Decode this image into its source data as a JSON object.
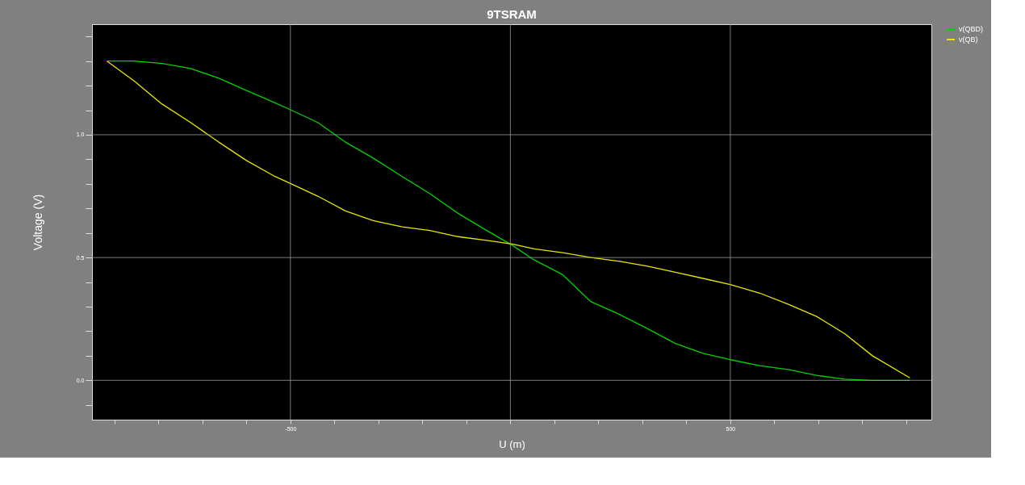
{
  "chart_data": {
    "type": "line",
    "title": "9TSRAM",
    "xlabel": "U (m)",
    "ylabel": "Voltage (V)",
    "x": [
      -917,
      -856,
      -792,
      -727,
      -663,
      -600,
      -535,
      -498,
      -438,
      -375,
      -312,
      -246,
      -183,
      -119,
      -54,
      4,
      54,
      119,
      183,
      246,
      312,
      375,
      438,
      500,
      567,
      631,
      696,
      760,
      823,
      908
    ],
    "series": [
      {
        "name": "v(QBD)",
        "color": "#00d200",
        "values": [
          1.3,
          1.3,
          1.29,
          1.27,
          1.23,
          1.18,
          1.13,
          1.1,
          1.05,
          0.97,
          0.905,
          0.83,
          0.76,
          0.68,
          0.61,
          0.55,
          0.49,
          0.43,
          0.32,
          0.27,
          0.21,
          0.15,
          0.11,
          0.084,
          0.06,
          0.044,
          0.02,
          0.005,
          0,
          0
        ]
      },
      {
        "name": "v(QB)",
        "color": "#e6e600",
        "values": [
          1.3,
          1.22,
          1.125,
          1.05,
          0.97,
          0.895,
          0.83,
          0.8,
          0.75,
          0.69,
          0.65,
          0.625,
          0.61,
          0.585,
          0.57,
          0.555,
          0.535,
          0.52,
          0.5,
          0.485,
          0.465,
          0.44,
          0.415,
          0.39,
          0.355,
          0.31,
          0.26,
          0.19,
          0.1,
          0.01
        ]
      }
    ],
    "xlim": [
      -951,
      957
    ],
    "xticks": [
      {
        "value": -900,
        "label": null
      },
      {
        "value": -800,
        "label": null
      },
      {
        "value": -700,
        "label": null
      },
      {
        "value": -600,
        "label": null
      },
      {
        "value": -500,
        "label": "-500"
      },
      {
        "value": -400,
        "label": null
      },
      {
        "value": -300,
        "label": null
      },
      {
        "value": -200,
        "label": null
      },
      {
        "value": -100,
        "label": null
      },
      {
        "value": 0,
        "label": null
      },
      {
        "value": 100,
        "label": null
      },
      {
        "value": 200,
        "label": null
      },
      {
        "value": 300,
        "label": null
      },
      {
        "value": 400,
        "label": null
      },
      {
        "value": 500,
        "label": "500"
      },
      {
        "value": 600,
        "label": null
      },
      {
        "value": 700,
        "label": null
      },
      {
        "value": 800,
        "label": null
      },
      {
        "value": 900,
        "label": null
      }
    ],
    "ylim": [
      -0.16,
      1.45
    ],
    "yticks": [
      {
        "value": -0.1,
        "label": null
      },
      {
        "value": 0,
        "label": "0.0"
      },
      {
        "value": 0.1,
        "label": null
      },
      {
        "value": 0.2,
        "label": null
      },
      {
        "value": 0.3,
        "label": null
      },
      {
        "value": 0.4,
        "label": null
      },
      {
        "value": 0.5,
        "label": "0.5"
      },
      {
        "value": 0.6,
        "label": null
      },
      {
        "value": 0.7,
        "label": null
      },
      {
        "value": 0.8,
        "label": null
      },
      {
        "value": 0.9,
        "label": null
      },
      {
        "value": 1.0,
        "label": "1.0"
      },
      {
        "value": 1.1,
        "label": null
      },
      {
        "value": 1.2,
        "label": null
      },
      {
        "value": 1.3,
        "label": null
      },
      {
        "value": 1.4,
        "label": null
      }
    ],
    "grid": true,
    "legend": "top right",
    "marker": "none",
    "line_style": "solid"
  }
}
